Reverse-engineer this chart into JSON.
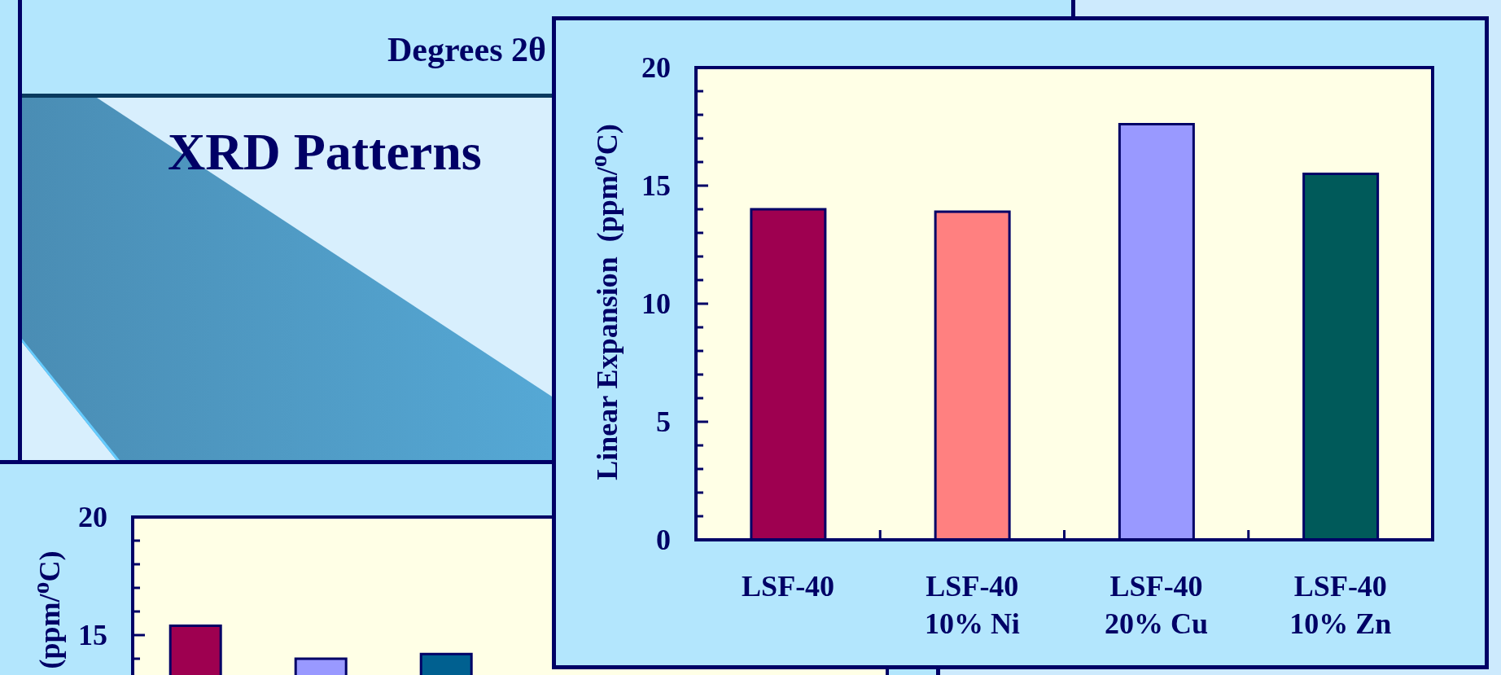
{
  "chart_data": [
    {
      "type": "other",
      "title": "XRD Patterns",
      "annotations": [
        "Degrees 2θ"
      ]
    },
    {
      "type": "bar",
      "categories": [
        null,
        null,
        null
      ],
      "values": [
        15.4,
        14.0,
        14.2
      ],
      "colors": [
        "#9e0050",
        "#9999ff",
        "#006090"
      ],
      "ylabel": "(ppm/$^{o}$C)",
      "ylim": [
        0,
        20
      ],
      "yticks": [
        {
          "value": 14,
          "label": null
        },
        15,
        {
          "value": 16,
          "label": null
        },
        {
          "value": 17,
          "label": null
        },
        {
          "value": 18,
          "label": null
        },
        {
          "value": 19,
          "label": null
        },
        20
      ]
    },
    {
      "type": "bar",
      "categories": [
        "LSF-40",
        "LSF-40\n10% Ni",
        "LSF-40\n20% Cu",
        "LSF-40\n10% Zn"
      ],
      "values": [
        14.0,
        13.9,
        17.6,
        15.5
      ],
      "colors": [
        "#9e0050",
        "#ff8080",
        "#9999ff",
        "#005a5a"
      ],
      "ylabel": "Linear Expansion  (ppm/$^{o}$C)",
      "ylim": [
        0,
        20
      ],
      "yticks": [
        0,
        {
          "value": 1,
          "label": null
        },
        {
          "value": 2,
          "label": null
        },
        {
          "value": 3,
          "label": null
        },
        {
          "value": 4,
          "label": null
        },
        5,
        {
          "value": 6,
          "label": null
        },
        {
          "value": 7,
          "label": null
        },
        {
          "value": 8,
          "label": null
        },
        {
          "value": 9,
          "label": null
        },
        10,
        {
          "value": 11,
          "label": null
        },
        {
          "value": 12,
          "label": null
        },
        {
          "value": 13,
          "label": null
        },
        {
          "value": 14,
          "label": null
        },
        15,
        {
          "value": 16,
          "label": null
        },
        {
          "value": 17,
          "label": null
        },
        {
          "value": 18,
          "label": null
        },
        {
          "value": 19,
          "label": null
        },
        20
      ]
    }
  ]
}
